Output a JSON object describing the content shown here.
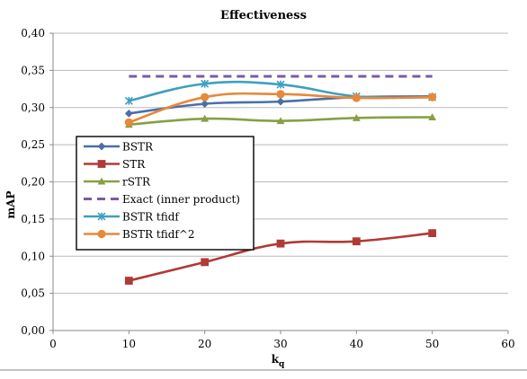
{
  "chart_data": {
    "type": "line",
    "title": "Effectiveness",
    "xlabel": "k",
    "xlabel_subscript": "q",
    "ylabel": "mAP",
    "xlim": [
      0,
      60
    ],
    "ylim": [
      0,
      0.4
    ],
    "xticks": [
      0,
      10,
      20,
      30,
      40,
      50,
      60
    ],
    "xtick_labels": [
      "0",
      "10",
      "20",
      "30",
      "40",
      "50",
      "60"
    ],
    "yticks": [
      0,
      0.05,
      0.1,
      0.15,
      0.2,
      0.25,
      0.3,
      0.35,
      0.4
    ],
    "ytick_labels": [
      "0,00",
      "0,05",
      "0,10",
      "0,15",
      "0,20",
      "0,25",
      "0,30",
      "0,35",
      "0,40"
    ],
    "grid": true,
    "legend_position": "left",
    "series": [
      {
        "name": "BSTR",
        "color": "#4a6fa8",
        "marker": "diamond",
        "dashed": false,
        "x": [
          10,
          20,
          30,
          40,
          50
        ],
        "y": [
          0.292,
          0.305,
          0.308,
          0.314,
          0.315
        ]
      },
      {
        "name": "STR",
        "color": "#b03a36",
        "marker": "square",
        "dashed": false,
        "x": [
          10,
          20,
          30,
          40,
          50
        ],
        "y": [
          0.067,
          0.092,
          0.117,
          0.12,
          0.131
        ]
      },
      {
        "name": "rSTR",
        "color": "#86a043",
        "marker": "triangle",
        "dashed": false,
        "x": [
          10,
          20,
          30,
          40,
          50
        ],
        "y": [
          0.277,
          0.285,
          0.282,
          0.286,
          0.287
        ]
      },
      {
        "name": "Exact (inner product)",
        "color": "#7b5aa6",
        "marker": "none",
        "dashed": true,
        "x": [
          10,
          20,
          30,
          40,
          50
        ],
        "y": [
          0.342,
          0.342,
          0.342,
          0.342,
          0.342
        ]
      },
      {
        "name": "BSTR tfidf",
        "color": "#3f9fc0",
        "marker": "x",
        "dashed": false,
        "x": [
          10,
          20,
          30,
          40,
          50
        ],
        "y": [
          0.309,
          0.332,
          0.331,
          0.315,
          0.314
        ]
      },
      {
        "name": "BSTR tfidf^2",
        "color": "#e8883a",
        "marker": "circle",
        "dashed": false,
        "x": [
          10,
          20,
          30,
          40,
          50
        ],
        "y": [
          0.28,
          0.314,
          0.318,
          0.313,
          0.314
        ]
      }
    ]
  }
}
